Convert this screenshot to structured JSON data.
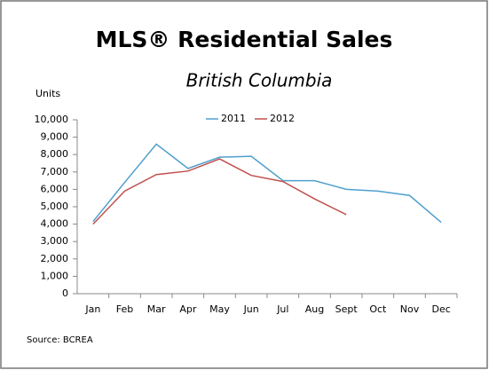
{
  "chart_data": {
    "type": "line",
    "title": "MLS® Residential Sales",
    "subtitle": "British Columbia",
    "y_axis_label": "Units",
    "source": "Source: BCREA",
    "categories": [
      "Jan",
      "Feb",
      "Mar",
      "Apr",
      "May",
      "Jun",
      "Jul",
      "Aug",
      "Sept",
      "Oct",
      "Nov",
      "Dec"
    ],
    "series": [
      {
        "name": "2011",
        "color": "#4f9fcf",
        "values": [
          4150,
          6400,
          8600,
          7200,
          7850,
          7900,
          6500,
          6500,
          6000,
          5900,
          5650,
          4100
        ]
      },
      {
        "name": "2012",
        "color": "#c0504d",
        "values": [
          4000,
          5900,
          6850,
          7050,
          7750,
          6800,
          6450,
          5450,
          4550,
          null,
          null,
          null
        ]
      }
    ],
    "ylim": [
      0,
      10000
    ],
    "yticks": [
      0,
      {
        "value": 1000,
        "label": "1,000"
      },
      {
        "value": 2000,
        "label": "2,000"
      },
      {
        "value": 3000,
        "label": "3,000"
      },
      {
        "value": 4000,
        "label": "4,000"
      },
      {
        "value": 5000,
        "label": "5,000"
      },
      {
        "value": 6000,
        "label": "6,000"
      },
      {
        "value": 7000,
        "label": "7,000"
      },
      {
        "value": 8000,
        "label": "8,000"
      },
      {
        "value": 9000,
        "label": "9,000"
      },
      {
        "value": 10000,
        "label": "10,000"
      }
    ],
    "grid": false,
    "legend": "top"
  }
}
